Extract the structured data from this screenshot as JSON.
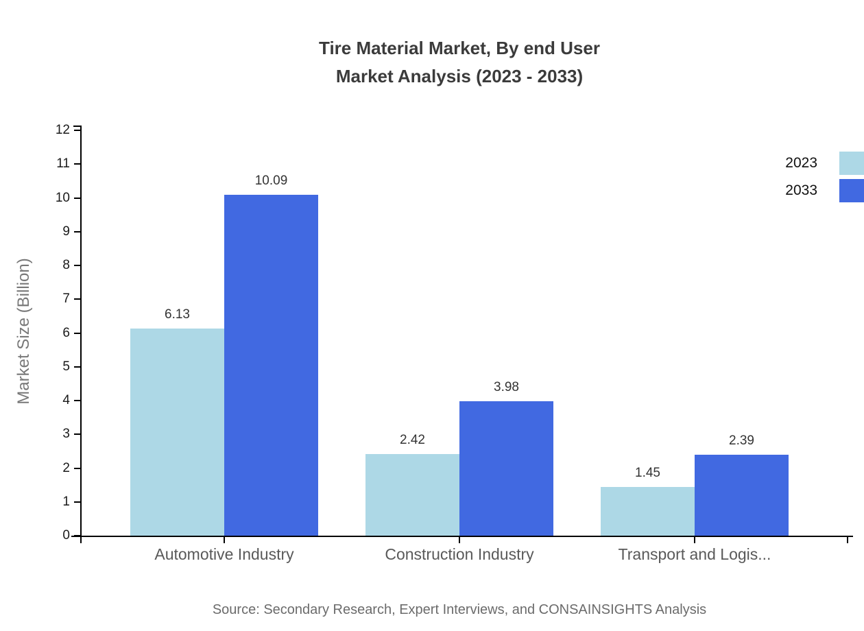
{
  "chart_data": {
    "type": "bar",
    "title_line1": "Tire Material Market, By end User",
    "title_line2": "Market Analysis (2023 - 2033)",
    "ylabel": "Market Size (Billion)",
    "xlabel": "",
    "categories": [
      "Automotive Industry",
      "Construction Industry",
      "Transport and Logis..."
    ],
    "series": [
      {
        "name": "2023",
        "color": "#ADD8E6",
        "values": [
          6.13,
          2.42,
          1.45
        ]
      },
      {
        "name": "2033",
        "color": "#4169E1",
        "values": [
          10.09,
          3.98,
          2.39
        ]
      }
    ],
    "ylim": [
      0,
      12
    ],
    "y_tick_step": 1,
    "grid": false,
    "legend_position": "top-right",
    "value_labels": true,
    "source": "Source: Secondary Research, Expert Interviews, and CONSAINSIGHTS Analysis"
  },
  "colors": {
    "axis": "#000000",
    "title": "#3b3b3b",
    "tick_label": "#1a1a1a",
    "category_label": "#595959",
    "value_label": "#333333",
    "ylabel": "#787878",
    "source": "#6b6b6b",
    "background": "#ffffff"
  }
}
